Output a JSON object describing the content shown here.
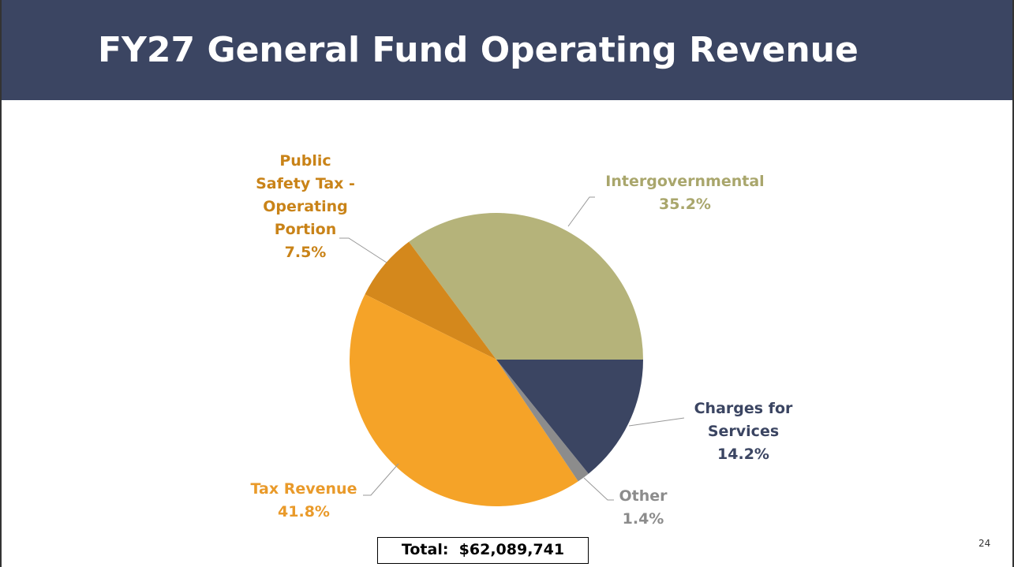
{
  "chart_data": {
    "type": "pie",
    "title": "FY27 General Fund Operating Revenue",
    "categories": [
      "Charges for Services",
      "Other",
      "Tax Revenue",
      "Public Safety Tax - Operating Portion",
      "Intergovernmental"
    ],
    "values": [
      14.2,
      1.4,
      41.8,
      7.5,
      35.2
    ],
    "value_labels": [
      "14.2%",
      "1.4%",
      "41.8%",
      "7.5%",
      "35.2%"
    ],
    "colors": [
      "#3b4562",
      "#8c8c8c",
      "#f5a328",
      "#d4881c",
      "#b5b37a"
    ],
    "label_colors": [
      "#3b4562",
      "#8c8c8c",
      "#e99a2a",
      "#c98318",
      "#a9a66c"
    ],
    "annotation": "Total:  $62,089,741"
  },
  "page_number": "24"
}
